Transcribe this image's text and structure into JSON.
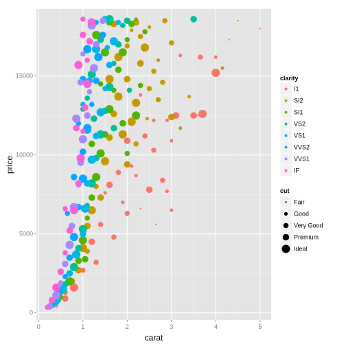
{
  "chart_data": {
    "type": "scatter",
    "title": "",
    "xlabel": "carat",
    "ylabel": "price",
    "xlim": [
      -0.05,
      5.25
    ],
    "ylim": [
      -450,
      19250
    ],
    "x_ticks": [
      0,
      1,
      2,
      3,
      4,
      5
    ],
    "x_tick_labels": [
      "0",
      "1",
      "2",
      "3",
      "4",
      "5"
    ],
    "y_ticks": [
      0,
      5000,
      10000,
      15000
    ],
    "y_tick_labels": [
      "0",
      "5000",
      "10000",
      "15000"
    ],
    "grid": true,
    "colors": {
      "panel": "#e5e5e5",
      "grid_major": "#ffffff",
      "grid_minor": "#f2f2f2"
    },
    "color_legend": {
      "title": "clarity",
      "position": "right",
      "levels": [
        {
          "label": "I1",
          "color": "#F8766D"
        },
        {
          "label": "SI2",
          "color": "#C49A00"
        },
        {
          "label": "SI1",
          "color": "#53B400"
        },
        {
          "label": "VS2",
          "color": "#00C094"
        },
        {
          "label": "VS1",
          "color": "#00B6EB"
        },
        {
          "label": "VVS2",
          "color": "#0CA5FF"
        },
        {
          "label": "VVS1",
          "color": "#A58AFF"
        },
        {
          "label": "IF",
          "color": "#FB61D7"
        }
      ]
    },
    "size_legend": {
      "title": "cut",
      "position": "right",
      "levels": [
        {
          "label": "Fair",
          "size": 1
        },
        {
          "label": "Good",
          "size": 2
        },
        {
          "label": "Very Good",
          "size": 3
        },
        {
          "label": "Premium",
          "size": 4
        },
        {
          "label": "Ideal",
          "size": 5
        }
      ]
    },
    "series": [
      {
        "name": "I1",
        "points": [
          [
            0.4,
            450,
            2
          ],
          [
            0.6,
            900,
            4
          ],
          [
            0.8,
            1600,
            5
          ],
          [
            1.0,
            2700,
            3
          ],
          [
            1.0,
            5200,
            2
          ],
          [
            1.2,
            4500,
            4
          ],
          [
            1.4,
            5600,
            3
          ],
          [
            1.5,
            7600,
            2
          ],
          [
            1.6,
            8100,
            4
          ],
          [
            1.8,
            8900,
            3
          ],
          [
            2.0,
            10900,
            4
          ],
          [
            2.1,
            9300,
            2
          ],
          [
            2.3,
            6600,
            1
          ],
          [
            2.5,
            7800,
            4
          ],
          [
            2.6,
            10300,
            3
          ],
          [
            2.8,
            8400,
            3
          ],
          [
            2.9,
            7700,
            2
          ],
          [
            3.0,
            6500,
            2
          ],
          [
            3.0,
            10900,
            2
          ],
          [
            3.1,
            12500,
            4
          ],
          [
            3.2,
            16300,
            2
          ],
          [
            3.7,
            12600,
            5
          ],
          [
            3.5,
            12500,
            4
          ],
          [
            3.65,
            16200,
            3
          ],
          [
            4.0,
            15200,
            5
          ],
          [
            4.0,
            16200,
            2
          ],
          [
            5.0,
            18000,
            1
          ],
          [
            2.4,
            11200,
            3
          ],
          [
            1.9,
            7000,
            2
          ],
          [
            2.2,
            8700,
            2
          ],
          [
            2.65,
            5600,
            1
          ],
          [
            1.3,
            3200,
            3
          ],
          [
            1.7,
            4800,
            3
          ],
          [
            2.0,
            6300,
            3
          ],
          [
            1.05,
            4000,
            2
          ],
          [
            2.9,
            12200,
            2
          ],
          [
            2.3,
            13800,
            2
          ],
          [
            2.6,
            12200,
            2
          ]
        ]
      },
      {
        "name": "SI2",
        "points": [
          [
            0.6,
            1300,
            3
          ],
          [
            0.9,
            2700,
            4
          ],
          [
            1.0,
            4100,
            5
          ],
          [
            1.1,
            5500,
            4
          ],
          [
            1.2,
            6500,
            5
          ],
          [
            1.3,
            8000,
            3
          ],
          [
            1.5,
            9600,
            5
          ],
          [
            1.6,
            11100,
            4
          ],
          [
            1.7,
            12600,
            4
          ],
          [
            1.8,
            13700,
            5
          ],
          [
            2.0,
            14800,
            4
          ],
          [
            2.0,
            16900,
            3
          ],
          [
            2.1,
            17900,
            2
          ],
          [
            2.2,
            18400,
            4
          ],
          [
            2.3,
            17500,
            3
          ],
          [
            2.4,
            16800,
            5
          ],
          [
            2.5,
            18100,
            2
          ],
          [
            2.6,
            15300,
            3
          ],
          [
            2.7,
            13500,
            3
          ],
          [
            2.8,
            14600,
            3
          ],
          [
            3.0,
            17100,
            3
          ],
          [
            3.0,
            12400,
            4
          ],
          [
            3.2,
            11700,
            2
          ],
          [
            3.4,
            13700,
            2
          ],
          [
            3.6,
            12500,
            1
          ],
          [
            4.15,
            15500,
            2
          ],
          [
            4.3,
            17300,
            1
          ],
          [
            4.5,
            18500,
            1
          ],
          [
            2.1,
            12100,
            5
          ],
          [
            2.0,
            9400,
            4
          ],
          [
            1.9,
            11300,
            5
          ],
          [
            2.2,
            10700,
            3
          ],
          [
            2.3,
            15800,
            4
          ],
          [
            1.6,
            14800,
            5
          ],
          [
            1.4,
            7300,
            4
          ],
          [
            1.1,
            3900,
            3
          ],
          [
            0.75,
            2000,
            4
          ],
          [
            2.5,
            14200,
            3
          ],
          [
            2.7,
            16000,
            2
          ],
          [
            2.85,
            18500,
            3
          ],
          [
            2.45,
            12300,
            2
          ],
          [
            1.8,
            16200,
            5
          ],
          [
            1.7,
            18300,
            4
          ],
          [
            2.2,
            13300,
            5
          ]
        ]
      },
      {
        "name": "SI1",
        "points": [
          [
            0.5,
            1000,
            3
          ],
          [
            0.7,
            2000,
            5
          ],
          [
            0.9,
            3300,
            4
          ],
          [
            1.0,
            4600,
            5
          ],
          [
            1.1,
            6000,
            3
          ],
          [
            1.2,
            7300,
            4
          ],
          [
            1.3,
            8600,
            5
          ],
          [
            1.4,
            10100,
            5
          ],
          [
            1.5,
            11300,
            4
          ],
          [
            1.6,
            12900,
            5
          ],
          [
            1.7,
            14100,
            3
          ],
          [
            1.8,
            15400,
            4
          ],
          [
            1.9,
            16500,
            5
          ],
          [
            2.0,
            17300,
            3
          ],
          [
            2.1,
            18300,
            4
          ],
          [
            2.2,
            18600,
            2
          ],
          [
            2.4,
            17800,
            3
          ],
          [
            2.2,
            12500,
            5
          ],
          [
            1.9,
            12000,
            4
          ],
          [
            2.0,
            10100,
            3
          ],
          [
            1.2,
            10700,
            4
          ],
          [
            1.4,
            14500,
            3
          ],
          [
            1.5,
            16500,
            5
          ],
          [
            1.6,
            18400,
            4
          ],
          [
            1.3,
            17600,
            5
          ],
          [
            0.8,
            3600,
            2
          ],
          [
            1.05,
            3400,
            4
          ],
          [
            2.3,
            14400,
            3
          ]
        ]
      },
      {
        "name": "VS2",
        "points": [
          [
            0.45,
            800,
            3
          ],
          [
            0.6,
            1800,
            4
          ],
          [
            0.8,
            2900,
            5
          ],
          [
            0.9,
            4100,
            4
          ],
          [
            1.0,
            5300,
            5
          ],
          [
            1.1,
            6800,
            3
          ],
          [
            1.2,
            8200,
            5
          ],
          [
            1.3,
            9800,
            4
          ],
          [
            1.4,
            11300,
            5
          ],
          [
            1.5,
            12800,
            4
          ],
          [
            1.6,
            14300,
            5
          ],
          [
            1.7,
            15800,
            3
          ],
          [
            1.8,
            17000,
            4
          ],
          [
            1.9,
            18200,
            3
          ],
          [
            2.0,
            18500,
            4
          ],
          [
            1.6,
            18600,
            5
          ],
          [
            1.4,
            17300,
            4
          ],
          [
            1.2,
            15100,
            5
          ],
          [
            1.1,
            13600,
            3
          ],
          [
            3.5,
            18600,
            4
          ],
          [
            2.05,
            14100,
            3
          ],
          [
            1.7,
            11700,
            4
          ],
          [
            1.0,
            12900,
            3
          ],
          [
            1.25,
            12300,
            4
          ]
        ]
      },
      {
        "name": "VS1",
        "points": [
          [
            0.4,
            700,
            4
          ],
          [
            0.55,
            1500,
            5
          ],
          [
            0.7,
            2500,
            4
          ],
          [
            0.85,
            3700,
            5
          ],
          [
            1.0,
            5000,
            4
          ],
          [
            1.05,
            6600,
            5
          ],
          [
            1.1,
            8200,
            4
          ],
          [
            1.2,
            9700,
            5
          ],
          [
            1.3,
            11200,
            4
          ],
          [
            1.4,
            12700,
            5
          ],
          [
            1.5,
            14200,
            3
          ],
          [
            1.6,
            15700,
            4
          ],
          [
            1.7,
            17200,
            5
          ],
          [
            1.8,
            18400,
            3
          ],
          [
            1.5,
            18600,
            4
          ],
          [
            1.3,
            16700,
            5
          ],
          [
            1.15,
            14700,
            4
          ],
          [
            1.0,
            13200,
            3
          ],
          [
            1.1,
            11600,
            5
          ],
          [
            0.95,
            9600,
            4
          ],
          [
            1.55,
            16800,
            3
          ]
        ]
      },
      {
        "name": "VVS2",
        "points": [
          [
            0.3,
            500,
            4
          ],
          [
            0.45,
            1300,
            5
          ],
          [
            0.6,
            2300,
            3
          ],
          [
            0.7,
            3500,
            4
          ],
          [
            0.8,
            4800,
            5
          ],
          [
            0.65,
            6300,
            3
          ],
          [
            0.9,
            6700,
            4
          ],
          [
            1.0,
            8500,
            5
          ],
          [
            1.0,
            10200,
            4
          ],
          [
            1.1,
            11700,
            5
          ],
          [
            1.2,
            13200,
            3
          ],
          [
            1.3,
            14700,
            4
          ],
          [
            1.35,
            16200,
            5
          ],
          [
            1.45,
            17600,
            4
          ],
          [
            1.3,
            18400,
            3
          ],
          [
            1.0,
            14800,
            4
          ],
          [
            1.1,
            16700,
            5
          ],
          [
            0.9,
            12000,
            3
          ],
          [
            0.8,
            8600,
            4
          ]
        ]
      },
      {
        "name": "VVS1",
        "points": [
          [
            0.25,
            400,
            4
          ],
          [
            0.4,
            1100,
            5
          ],
          [
            0.5,
            1900,
            3
          ],
          [
            0.6,
            3100,
            4
          ],
          [
            0.7,
            4300,
            5
          ],
          [
            0.75,
            5500,
            4
          ],
          [
            0.8,
            6700,
            5
          ],
          [
            0.9,
            8100,
            3
          ],
          [
            0.95,
            9500,
            4
          ],
          [
            1.0,
            11000,
            5
          ],
          [
            1.1,
            12500,
            4
          ],
          [
            1.15,
            14000,
            3
          ],
          [
            1.25,
            15500,
            5
          ],
          [
            1.3,
            17000,
            4
          ],
          [
            1.2,
            18200,
            5
          ],
          [
            1.0,
            16400,
            3
          ],
          [
            0.95,
            14600,
            4
          ],
          [
            0.85,
            12300,
            5
          ],
          [
            1.45,
            18500,
            4
          ]
        ]
      },
      {
        "name": "IF",
        "points": [
          [
            0.2,
            350,
            3
          ],
          [
            0.3,
            800,
            4
          ],
          [
            0.4,
            1600,
            5
          ],
          [
            0.5,
            2600,
            4
          ],
          [
            0.6,
            3800,
            3
          ],
          [
            0.7,
            5200,
            4
          ],
          [
            0.6,
            6600,
            3
          ],
          [
            0.8,
            6500,
            5
          ],
          [
            0.9,
            8200,
            4
          ],
          [
            0.95,
            9800,
            5
          ],
          [
            1.0,
            11500,
            3
          ],
          [
            1.05,
            13000,
            4
          ],
          [
            1.1,
            14500,
            5
          ],
          [
            1.1,
            16000,
            3
          ],
          [
            1.0,
            17600,
            4
          ],
          [
            1.0,
            18600,
            3
          ],
          [
            0.9,
            15700,
            5
          ],
          [
            0.85,
            11700,
            4
          ],
          [
            1.2,
            18400,
            5
          ],
          [
            1.15,
            17200,
            4
          ]
        ]
      }
    ]
  }
}
